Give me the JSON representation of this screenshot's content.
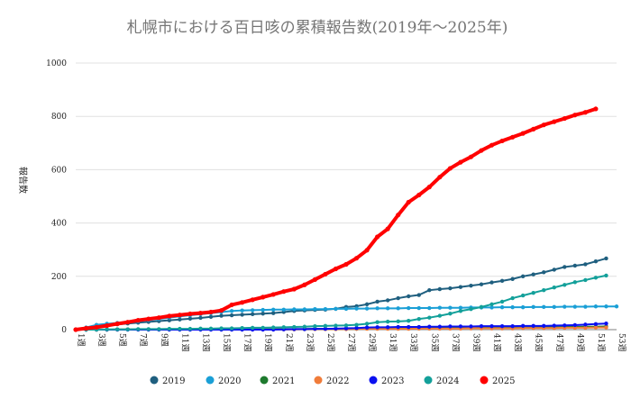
{
  "chart_data": {
    "type": "line",
    "title": "札幌市における百日咳の累積報告数(2019年〜2025年)",
    "xlabel": "",
    "ylabel": "報告数",
    "ylim": [
      0,
      1000
    ],
    "yticks": [
      0,
      200,
      400,
      600,
      800,
      1000
    ],
    "x_categories_shown": [
      "1週",
      "3週",
      "5週",
      "7週",
      "9週",
      "11週",
      "13週",
      "15週",
      "17週",
      "19週",
      "21週",
      "23週",
      "25週",
      "27週",
      "29週",
      "31週",
      "33週",
      "35週",
      "37週",
      "39週",
      "41週",
      "43週",
      "45週",
      "47週",
      "49週",
      "51週",
      "53週"
    ],
    "x_range_weeks": [
      1,
      53
    ],
    "grid": "horizontal",
    "legend_position": "bottom",
    "series": [
      {
        "name": "2019",
        "color": "#1f5f7f",
        "values": [
          0,
          4,
          9,
          14,
          20,
          23,
          26,
          29,
          32,
          35,
          38,
          41,
          44,
          48,
          52,
          54,
          56,
          58,
          60,
          62,
          66,
          70,
          72,
          74,
          75,
          78,
          85,
          88,
          95,
          105,
          110,
          118,
          125,
          130,
          148,
          152,
          155,
          160,
          165,
          170,
          177,
          183,
          190,
          200,
          207,
          215,
          225,
          235,
          240,
          245,
          256,
          267
        ]
      },
      {
        "name": "2020",
        "color": "#1a9fd6",
        "values": [
          0,
          8,
          18,
          22,
          25,
          28,
          32,
          36,
          40,
          45,
          50,
          54,
          58,
          62,
          66,
          70,
          72,
          73,
          74,
          75,
          75,
          76,
          76,
          77,
          77,
          78,
          78,
          79,
          79,
          80,
          80,
          80,
          81,
          81,
          81,
          82,
          82,
          82,
          83,
          83,
          83,
          84,
          84,
          84,
          85,
          85,
          85,
          86,
          86,
          86,
          87,
          87,
          87
        ]
      },
      {
        "name": "2021",
        "color": "#1e7a2e",
        "values": [
          0,
          0,
          0,
          0,
          1,
          1,
          1,
          1,
          1,
          1,
          1,
          1,
          1,
          1,
          1,
          1,
          2,
          2,
          2,
          2,
          2,
          2,
          2,
          3,
          3,
          3,
          3,
          3,
          4,
          4,
          4,
          4,
          5,
          5,
          5,
          5,
          6,
          6,
          6,
          7,
          7,
          7,
          8,
          8,
          8,
          9,
          9,
          10,
          10,
          11,
          11,
          12
        ]
      },
      {
        "name": "2022",
        "color": "#f07c3a",
        "values": [
          0,
          0,
          0,
          0,
          0,
          1,
          1,
          1,
          1,
          1,
          1,
          1,
          1,
          1,
          1,
          1,
          1,
          1,
          1,
          1,
          1,
          1,
          2,
          2,
          2,
          2,
          2,
          3,
          3,
          3,
          3,
          3,
          3,
          4,
          4,
          4,
          4,
          4,
          5,
          5,
          5,
          5,
          5,
          6,
          6,
          6,
          6,
          7,
          7,
          7,
          8,
          8
        ]
      },
      {
        "name": "2023",
        "color": "#0a10f0",
        "values": [
          0,
          0,
          0,
          0,
          0,
          0,
          0,
          0,
          0,
          0,
          0,
          0,
          0,
          0,
          0,
          0,
          0,
          0,
          0,
          0,
          1,
          2,
          2,
          3,
          3,
          4,
          5,
          6,
          8,
          9,
          9,
          10,
          10,
          10,
          11,
          11,
          12,
          12,
          12,
          13,
          13,
          13,
          13,
          14,
          14,
          14,
          15,
          16,
          17,
          19,
          21,
          23
        ]
      },
      {
        "name": "2024",
        "color": "#13a09a",
        "values": [
          0,
          0,
          0,
          1,
          1,
          1,
          2,
          2,
          2,
          3,
          3,
          3,
          4,
          4,
          5,
          5,
          6,
          7,
          7,
          8,
          9,
          10,
          11,
          13,
          14,
          15,
          16,
          18,
          22,
          28,
          30,
          31,
          33,
          40,
          45,
          52,
          60,
          70,
          77,
          85,
          95,
          105,
          118,
          128,
          138,
          148,
          158,
          168,
          178,
          186,
          195,
          203
        ]
      },
      {
        "name": "2025",
        "color": "#ff0000",
        "values": [
          0,
          5,
          9,
          15,
          22,
          28,
          35,
          40,
          45,
          51,
          55,
          59,
          62,
          66,
          72,
          93,
          102,
          112,
          122,
          132,
          143,
          152,
          168,
          188,
          208,
          228,
          245,
          268,
          298,
          348,
          378,
          430,
          478,
          505,
          535,
          572,
          605,
          628,
          648,
          672,
          692,
          708,
          722,
          736,
          752,
          768,
          780,
          792,
          805,
          815,
          828
        ]
      }
    ]
  }
}
